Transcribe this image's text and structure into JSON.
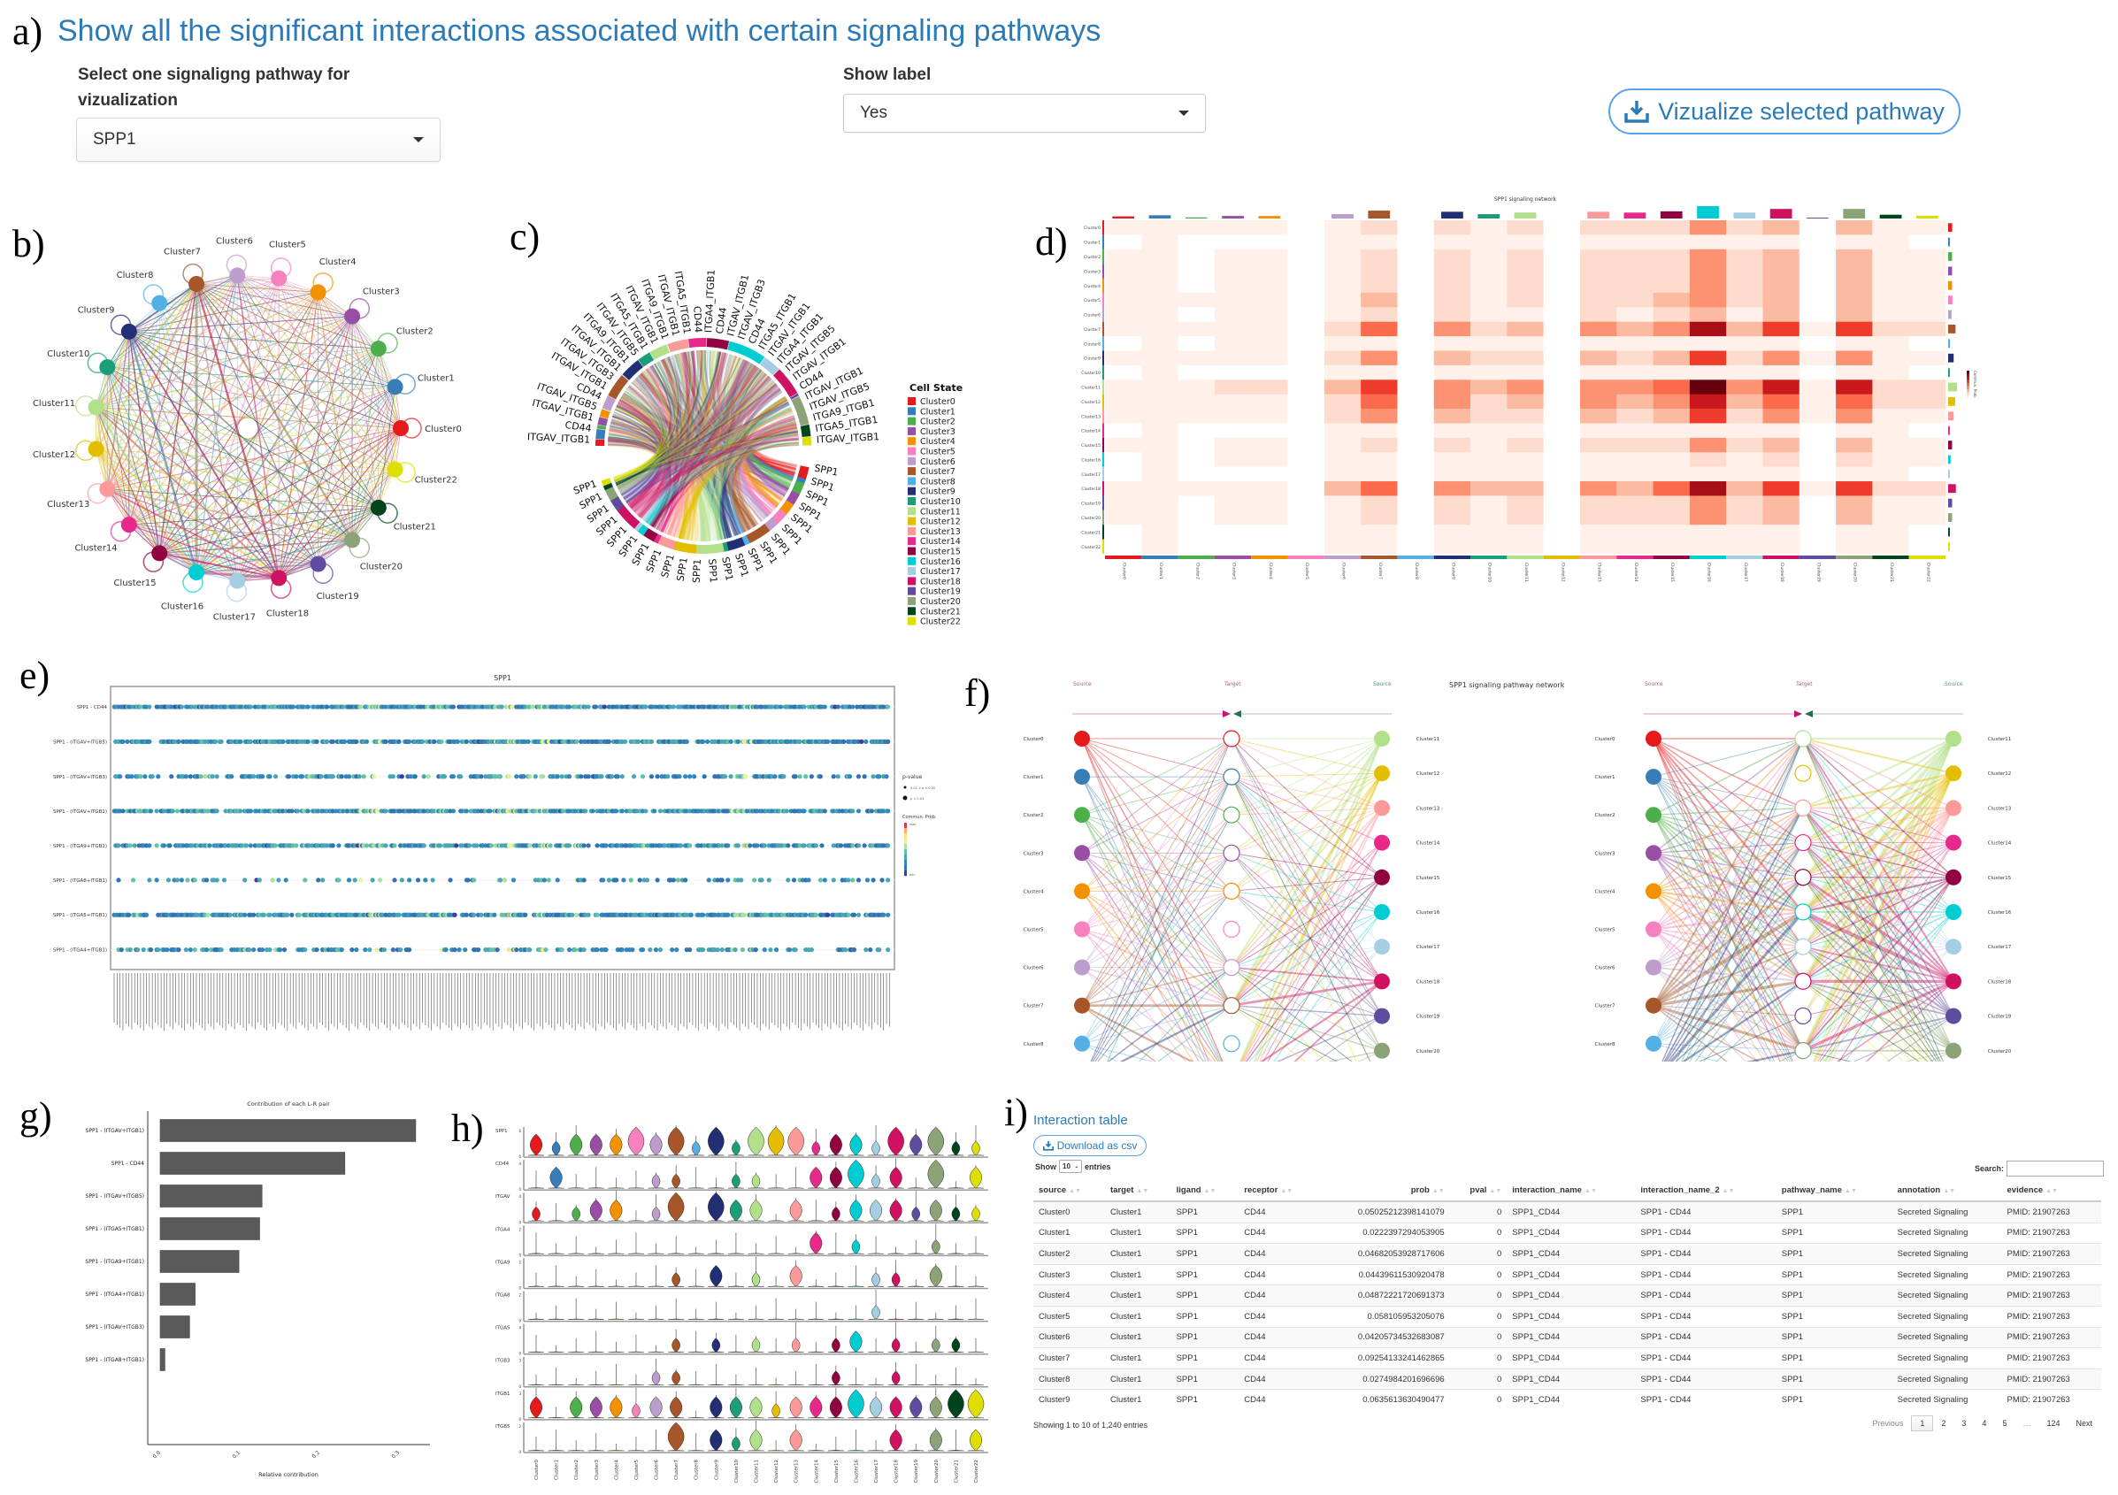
{
  "panel_letters": {
    "a": "a)",
    "b": "b)",
    "c": "c)",
    "d": "d)",
    "e": "e)",
    "f": "f)",
    "g": "g)",
    "h": "h)",
    "i": "i)"
  },
  "header": {
    "title": "Show all the significant interactions associated with certain signaling pathways",
    "pathway_label": "Select one signaligng pathway for vizualization",
    "pathway_value": "SPP1",
    "show_label_label": "Show label",
    "show_label_value": "Yes",
    "visualize_button": "Vizualize selected pathway",
    "visualize_icon": "download-icon"
  },
  "clusters": [
    "Cluster0",
    "Cluster1",
    "Cluster2",
    "Cluster3",
    "Cluster4",
    "Cluster5",
    "Cluster6",
    "Cluster7",
    "Cluster8",
    "Cluster9",
    "Cluster10",
    "Cluster11",
    "Cluster12",
    "Cluster13",
    "Cluster14",
    "Cluster15",
    "Cluster16",
    "Cluster17",
    "Cluster18",
    "Cluster19",
    "Cluster20",
    "Cluster21",
    "Cluster22"
  ],
  "cluster_colors": [
    "#e41a1c",
    "#377eb8",
    "#4daf4a",
    "#984ea3",
    "#f39200",
    "#f781bf",
    "#bc9dcc",
    "#a65628",
    "#54b0e4",
    "#222f75",
    "#1b9e77",
    "#b2df8a",
    "#e3be00",
    "#fb9a99",
    "#e7298a",
    "#910241",
    "#00cdd1",
    "#a6cee3",
    "#ce1261",
    "#5f4ba0",
    "#8ba376",
    "#00441b",
    "#dede00"
  ],
  "chord": {
    "legend_title": "Cell State",
    "receptor_labels": [
      "ITGAV_ITGB1",
      "CD44",
      "ITGAV_ITGB1",
      "ITGAV_ITGB5",
      "CD44",
      "ITGAV_ITGB1",
      "ITGAV_ITGB3",
      "ITGAV_ITGB1",
      "ITGA9_ITGB1",
      "ITGAV_ITGB5",
      "ITGA5_ITGB1",
      "ITGAV_ITGB1",
      "ITGA9_ITGB1",
      "ITGAV_ITGB1",
      "ITGA5_ITGB1",
      "CD44",
      "ITGA4_ITGB1",
      "CD44",
      "ITGAV_ITGB1",
      "ITGAV_ITGB3",
      "CD44",
      "ITGA5_ITGB1",
      "ITGAV_ITGB1",
      "ITGA4_ITGB1",
      "ITGAV_ITGB5",
      "ITGAV_ITGB1",
      "CD44",
      "ITGAV_ITGB1",
      "ITGAV_ITGB5",
      "ITGA9_ITGB1",
      "ITGA5_ITGB1",
      "ITGAV_ITGB1"
    ],
    "ligand_label": "SPP1"
  },
  "heatmap": {
    "title": "SPP1 signaling network",
    "colorbar_label": "Commun. Prob.",
    "type": "heatmap",
    "matrix": [
      [
        1,
        1,
        1,
        1,
        1,
        0,
        1,
        2,
        0,
        2,
        1,
        2,
        0,
        2,
        2,
        2,
        4,
        2,
        3,
        0,
        3,
        1,
        1
      ],
      [
        0,
        1,
        0,
        0,
        0,
        0,
        1,
        1,
        0,
        1,
        1,
        1,
        0,
        1,
        1,
        1,
        1,
        1,
        1,
        0,
        1,
        1,
        0
      ],
      [
        1,
        1,
        0,
        1,
        1,
        0,
        1,
        2,
        0,
        2,
        1,
        2,
        0,
        2,
        2,
        2,
        4,
        2,
        3,
        0,
        3,
        1,
        1
      ],
      [
        1,
        1,
        0,
        1,
        1,
        0,
        1,
        2,
        0,
        2,
        1,
        2,
        0,
        2,
        2,
        2,
        4,
        2,
        3,
        0,
        3,
        1,
        1
      ],
      [
        1,
        1,
        0,
        1,
        1,
        0,
        1,
        2,
        0,
        2,
        1,
        2,
        0,
        2,
        2,
        2,
        4,
        2,
        3,
        0,
        3,
        1,
        1
      ],
      [
        1,
        1,
        1,
        1,
        1,
        0,
        1,
        3,
        0,
        2,
        1,
        2,
        0,
        2,
        2,
        3,
        4,
        2,
        3,
        0,
        3,
        1,
        1
      ],
      [
        1,
        1,
        0,
        1,
        1,
        0,
        1,
        2,
        0,
        2,
        1,
        1,
        0,
        2,
        1,
        2,
        3,
        1,
        3,
        0,
        3,
        1,
        1
      ],
      [
        1,
        1,
        1,
        1,
        1,
        0,
        2,
        5,
        0,
        4,
        2,
        3,
        0,
        4,
        3,
        4,
        8,
        3,
        6,
        1,
        6,
        2,
        2
      ],
      [
        0,
        1,
        0,
        1,
        1,
        0,
        1,
        1,
        0,
        1,
        1,
        1,
        0,
        1,
        1,
        1,
        1,
        1,
        1,
        0,
        1,
        1,
        0
      ],
      [
        1,
        1,
        1,
        1,
        1,
        0,
        2,
        4,
        0,
        3,
        2,
        2,
        0,
        3,
        2,
        3,
        6,
        2,
        4,
        1,
        4,
        1,
        1
      ],
      [
        0,
        1,
        0,
        0,
        0,
        0,
        1,
        1,
        0,
        1,
        1,
        1,
        0,
        1,
        1,
        1,
        1,
        1,
        1,
        0,
        1,
        1,
        0
      ],
      [
        1,
        1,
        1,
        2,
        2,
        0,
        3,
        6,
        0,
        4,
        3,
        4,
        0,
        4,
        4,
        5,
        9,
        4,
        7,
        1,
        7,
        2,
        2
      ],
      [
        1,
        1,
        1,
        1,
        1,
        0,
        2,
        5,
        0,
        4,
        2,
        3,
        0,
        4,
        3,
        4,
        7,
        3,
        5,
        1,
        5,
        2,
        2
      ],
      [
        1,
        1,
        1,
        1,
        1,
        0,
        2,
        4,
        0,
        3,
        2,
        2,
        0,
        3,
        2,
        3,
        6,
        2,
        4,
        1,
        4,
        1,
        1
      ],
      [
        0,
        1,
        0,
        0,
        0,
        0,
        1,
        1,
        0,
        1,
        1,
        1,
        0,
        1,
        1,
        1,
        1,
        1,
        1,
        0,
        1,
        1,
        0
      ],
      [
        1,
        1,
        0,
        1,
        1,
        0,
        1,
        2,
        0,
        2,
        1,
        2,
        0,
        2,
        2,
        2,
        4,
        2,
        3,
        0,
        3,
        1,
        1
      ],
      [
        0,
        1,
        0,
        1,
        1,
        0,
        1,
        1,
        0,
        1,
        1,
        1,
        0,
        1,
        1,
        1,
        2,
        1,
        2,
        0,
        2,
        1,
        1
      ],
      [
        0,
        1,
        0,
        0,
        0,
        0,
        1,
        1,
        0,
        1,
        1,
        1,
        0,
        1,
        1,
        1,
        1,
        1,
        1,
        0,
        1,
        1,
        0
      ],
      [
        1,
        1,
        1,
        1,
        1,
        0,
        3,
        5,
        0,
        4,
        3,
        3,
        0,
        4,
        3,
        5,
        8,
        3,
        6,
        1,
        6,
        2,
        2
      ],
      [
        1,
        1,
        0,
        1,
        1,
        0,
        1,
        2,
        0,
        2,
        1,
        2,
        0,
        2,
        2,
        2,
        4,
        2,
        3,
        0,
        3,
        1,
        1
      ],
      [
        1,
        1,
        0,
        1,
        1,
        0,
        1,
        2,
        0,
        2,
        1,
        2,
        0,
        2,
        2,
        2,
        4,
        2,
        3,
        0,
        3,
        1,
        1
      ],
      [
        0,
        1,
        0,
        0,
        0,
        0,
        1,
        1,
        0,
        1,
        1,
        1,
        0,
        1,
        1,
        1,
        1,
        1,
        1,
        0,
        1,
        1,
        0
      ],
      [
        0,
        1,
        0,
        0,
        0,
        0,
        1,
        1,
        0,
        1,
        1,
        1,
        0,
        1,
        1,
        1,
        1,
        1,
        1,
        0,
        1,
        1,
        0
      ]
    ]
  },
  "dotplot": {
    "title": "SPP1",
    "rows": [
      "SPP1 - CD44",
      "SPP1 - (ITGAV+ITGB5)",
      "SPP1 - (ITGAV+ITGB3)",
      "SPP1 - (ITGAV+ITGB1)",
      "SPP1 - (ITGA9+ITGB1)",
      "SPP1 - (ITGA8+ITGB1)",
      "SPP1 - (ITGA5+ITGB1)",
      "SPP1 - (ITGA4+ITGB1)"
    ],
    "pvalue_title": "p-value",
    "pvalue_levels": [
      "0.01 < p < 0.05",
      "p < 0.01"
    ],
    "prob_title": "Commun. Prob.",
    "prob_max": "max",
    "prob_min": "min"
  },
  "hierarchy": {
    "title": "SPP1 signaling pathway network",
    "source_label": "Source",
    "target_label": "Target"
  },
  "chart_data": {
    "type": "bar",
    "title": "Contribution of each L-R pair",
    "xlabel": "Relative contribution",
    "ylabel": "",
    "categories": [
      "SPP1 - (ITGAV+ITGB1)",
      "SPP1 - CD44",
      "SPP1 - (ITGAV+ITGB5)",
      "SPP1 - (ITGA5+ITGB1)",
      "SPP1 - (ITGA9+ITGB1)",
      "SPP1 - (ITGA4+ITGB1)",
      "SPP1 - (ITGAV+ITGB3)",
      "SPP1 - (ITGA8+ITGB1)"
    ],
    "values": [
      0.321,
      0.232,
      0.128,
      0.125,
      0.099,
      0.044,
      0.037,
      0.006
    ],
    "xlim": [
      0,
      0.34
    ],
    "xticks": [
      "0.0",
      "0.1",
      "0.2",
      "0.3"
    ],
    "orientation": "horizontal",
    "bar_color": "#5a5a5a"
  },
  "violin": {
    "genes": [
      "SPP1",
      "CD44",
      "ITGAV",
      "ITGA4",
      "ITGA9",
      "ITGA8",
      "ITGA5",
      "ITGB3",
      "ITGB1",
      "ITGB5"
    ],
    "yticks": [
      [
        "0",
        "6"
      ],
      [
        "0",
        "4"
      ],
      [
        "0",
        "4"
      ],
      [
        "0",
        "2"
      ],
      [
        "0",
        "2"
      ],
      [
        "0",
        "2"
      ],
      [
        "0",
        "4"
      ],
      [
        "0",
        "3"
      ],
      [
        "0",
        "3"
      ],
      [
        "0",
        "2"
      ]
    ],
    "levels": [
      [
        2,
        1,
        2,
        2,
        2,
        3,
        2,
        3,
        1,
        3,
        1,
        3,
        3,
        3,
        1,
        2,
        2,
        1,
        3,
        2,
        3,
        1,
        1
      ],
      [
        0,
        2,
        0,
        0,
        0,
        0,
        1,
        1,
        0,
        0,
        1,
        1,
        0,
        0,
        2,
        2,
        3,
        1,
        2,
        0,
        3,
        0,
        2
      ],
      [
        1,
        0,
        1,
        2,
        2,
        0,
        1,
        3,
        0,
        3,
        2,
        2,
        0,
        2,
        0,
        1,
        2,
        2,
        2,
        1,
        2,
        1,
        1
      ],
      [
        0,
        0,
        0,
        0,
        0,
        0,
        0,
        0,
        0,
        0,
        0,
        0,
        0,
        0,
        2,
        0,
        1,
        0,
        0,
        0,
        1,
        0,
        0
      ],
      [
        0,
        0,
        0,
        0,
        0,
        0,
        0,
        1,
        0,
        2,
        0,
        1,
        0,
        2,
        0,
        0,
        0,
        1,
        1,
        0,
        2,
        0,
        0
      ],
      [
        0,
        0,
        0,
        0,
        0,
        0,
        0,
        0,
        0,
        0,
        0,
        0,
        0,
        0,
        0,
        0,
        0,
        1,
        0,
        0,
        0,
        0,
        0
      ],
      [
        0,
        0,
        0,
        0,
        0,
        0,
        0,
        1,
        0,
        1,
        0,
        1,
        0,
        1,
        0,
        1,
        2,
        0,
        1,
        0,
        1,
        1,
        0
      ],
      [
        0,
        0,
        0,
        0,
        0,
        0,
        1,
        1,
        0,
        0,
        0,
        0,
        0,
        0,
        0,
        1,
        0,
        0,
        1,
        0,
        0,
        0,
        0
      ],
      [
        2,
        0,
        2,
        2,
        2,
        1,
        2,
        2,
        0,
        2,
        2,
        2,
        1,
        2,
        2,
        2,
        3,
        2,
        2,
        2,
        2,
        3,
        3
      ],
      [
        0,
        0,
        0,
        0,
        0,
        0,
        0,
        3,
        0,
        2,
        1,
        2,
        0,
        2,
        0,
        0,
        0,
        0,
        2,
        0,
        2,
        0,
        2
      ]
    ]
  },
  "table": {
    "title": "Interaction table",
    "download_label": "Download as csv",
    "show_label": "Show",
    "entries_value": "10",
    "entries_label": "entries",
    "search_label": "Search:",
    "search_value": "",
    "columns": [
      "source",
      "target",
      "ligand",
      "receptor",
      "prob",
      "pval",
      "interaction_name",
      "interaction_name_2",
      "pathway_name",
      "annotation",
      "evidence"
    ],
    "rows": [
      [
        "Cluster0",
        "Cluster1",
        "SPP1",
        "CD44",
        "0.05025212398141079",
        "0",
        "SPP1_CD44",
        "SPP1 - CD44",
        "SPP1",
        "Secreted Signaling",
        "PMID: 21907263"
      ],
      [
        "Cluster1",
        "Cluster1",
        "SPP1",
        "CD44",
        "0.0222397294053905",
        "0",
        "SPP1_CD44",
        "SPP1 - CD44",
        "SPP1",
        "Secreted Signaling",
        "PMID: 21907263"
      ],
      [
        "Cluster2",
        "Cluster1",
        "SPP1",
        "CD44",
        "0.04682053928717606",
        "0",
        "SPP1_CD44",
        "SPP1 - CD44",
        "SPP1",
        "Secreted Signaling",
        "PMID: 21907263"
      ],
      [
        "Cluster3",
        "Cluster1",
        "SPP1",
        "CD44",
        "0.04439611530920478",
        "0",
        "SPP1_CD44",
        "SPP1 - CD44",
        "SPP1",
        "Secreted Signaling",
        "PMID: 21907263"
      ],
      [
        "Cluster4",
        "Cluster1",
        "SPP1",
        "CD44",
        "0.04872221720691373",
        "0",
        "SPP1_CD44",
        "SPP1 - CD44",
        "SPP1",
        "Secreted Signaling",
        "PMID: 21907263"
      ],
      [
        "Cluster5",
        "Cluster1",
        "SPP1",
        "CD44",
        "0.058105953205076",
        "0",
        "SPP1_CD44",
        "SPP1 - CD44",
        "SPP1",
        "Secreted Signaling",
        "PMID: 21907263"
      ],
      [
        "Cluster6",
        "Cluster1",
        "SPP1",
        "CD44",
        "0.04205734532683087",
        "0",
        "SPP1_CD44",
        "SPP1 - CD44",
        "SPP1",
        "Secreted Signaling",
        "PMID: 21907263"
      ],
      [
        "Cluster7",
        "Cluster1",
        "SPP1",
        "CD44",
        "0.09254133241462865",
        "0",
        "SPP1_CD44",
        "SPP1 - CD44",
        "SPP1",
        "Secreted Signaling",
        "PMID: 21907263"
      ],
      [
        "Cluster8",
        "Cluster1",
        "SPP1",
        "CD44",
        "0.0274984201696696",
        "0",
        "SPP1_CD44",
        "SPP1 - CD44",
        "SPP1",
        "Secreted Signaling",
        "PMID: 21907263"
      ],
      [
        "Cluster9",
        "Cluster1",
        "SPP1",
        "CD44",
        "0.0635613630490477",
        "0",
        "SPP1_CD44",
        "SPP1 - CD44",
        "SPP1",
        "Secreted Signaling",
        "PMID: 21907263"
      ]
    ],
    "info": "Showing 1 to 10 of 1,240 entries",
    "pagination": [
      "Previous",
      "1",
      "2",
      "3",
      "4",
      "5",
      "…",
      "124",
      "Next"
    ],
    "current_page": "1"
  }
}
